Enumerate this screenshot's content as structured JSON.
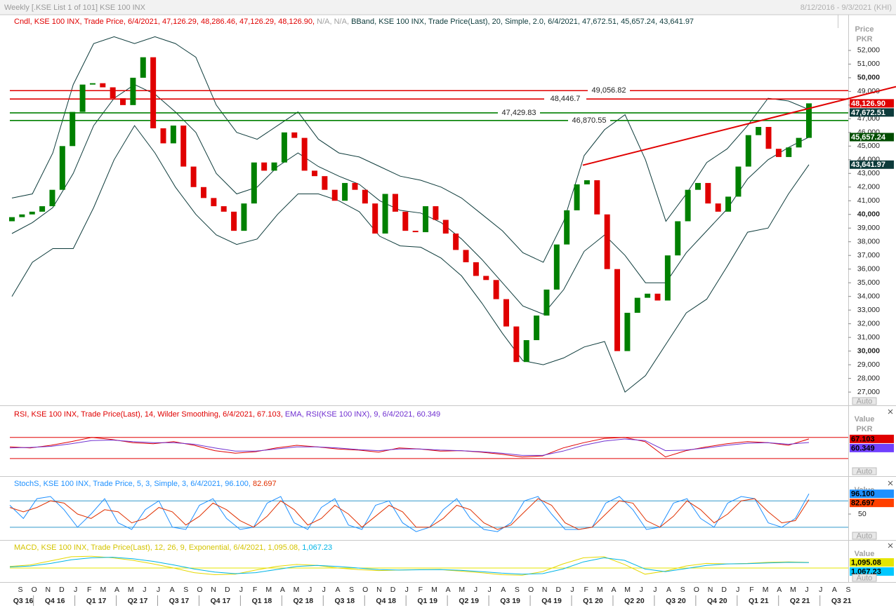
{
  "header": {
    "title": "Weekly [.KSE List 1 of 101] KSE 100 INX",
    "range": "8/12/2016 - 9/3/2021 (KHI)"
  },
  "chart_data": [
    {
      "type": "candlestick",
      "legend": [
        {
          "text": "Cndl, KSE 100 INX, Trade Price, 6/4/2021, 47,126.29, 48,286.46, 47,126.29, 48,126.90, ",
          "color": "#e00000"
        },
        {
          "text": "N/A, N/A, ",
          "color": "#a0a0a0"
        },
        {
          "text": "BBand, KSE 100 INX, Trade Price(Last),  20, Simple, 2.0, 6/4/2021, 47,672.51, 45,657.24, 43,641.97",
          "color": "#0d3b3b"
        }
      ],
      "axis_title": [
        "Price",
        "PKR"
      ],
      "open": 39500,
      "values": [
        39800,
        40000,
        40200,
        40600,
        41800,
        45000,
        47500,
        49500,
        49600,
        49300,
        48500,
        48000,
        50000,
        51500,
        46300,
        45200,
        46500,
        43500,
        42000,
        41200,
        40600,
        40200,
        38800,
        40800,
        43800,
        43200,
        43800,
        46000,
        45600,
        43200,
        42800,
        41800,
        41000,
        42300,
        41800,
        40800,
        38600,
        41500,
        40200,
        38800,
        38700,
        40600,
        39600,
        38600,
        37400,
        36500,
        35500,
        35200,
        33800,
        31800,
        29200,
        30800,
        32600,
        34500,
        37800,
        40300,
        42200,
        42500,
        40000,
        36000,
        30000,
        32800,
        33900,
        34200,
        33700,
        37000,
        39500,
        41800,
        42300,
        40800,
        40200,
        41300,
        43500,
        45800,
        46400,
        44800,
        44200,
        44900,
        45600,
        48126.9
      ],
      "up_color": "#008000",
      "down_color": "#e00000",
      "bands": {
        "color": "#0d3b3b",
        "upper": [
          41200,
          41500,
          44500,
          49500,
          52500,
          53000,
          52500,
          53000,
          52500,
          51500,
          48000,
          46000,
          45500,
          46500,
          47500,
          45500,
          44500,
          44200,
          43500,
          42800,
          42500,
          42000,
          41200,
          40000,
          38800,
          37200,
          36500,
          39500,
          44300,
          46200,
          47300,
          44000,
          39500,
          41500,
          43800,
          44800,
          46500,
          48500,
          48300,
          47672.51
        ],
        "middle": [
          38600,
          39400,
          40500,
          43000,
          46500,
          48500,
          49500,
          48800,
          47500,
          46000,
          43000,
          41500,
          42000,
          43500,
          44500,
          43500,
          42800,
          42200,
          41000,
          40300,
          40100,
          39400,
          38200,
          36700,
          35000,
          33300,
          32700,
          34500,
          37300,
          38500,
          37000,
          35000,
          35000,
          37200,
          38800,
          40400,
          42600,
          44000,
          44900,
          45657.24
        ],
        "lower": [
          34000,
          36500,
          37500,
          37500,
          40500,
          44000,
          46500,
          44500,
          42000,
          40000,
          38500,
          37800,
          38200,
          40000,
          41500,
          41500,
          41000,
          40200,
          38400,
          37700,
          37600,
          36800,
          35500,
          33500,
          31300,
          29300,
          29000,
          29500,
          30300,
          30700,
          27000,
          28200,
          30500,
          32800,
          33800,
          36200,
          38700,
          39000,
          41500,
          43641.97
        ]
      },
      "levels": [
        {
          "value": 49056.82,
          "label": "49,056.82",
          "color": "#e00000"
        },
        {
          "value": 48446.7,
          "label": "48,446.7",
          "color": "#e00000"
        },
        {
          "value": 47429.83,
          "label": "47,429.83",
          "color": "#008000"
        },
        {
          "value": 46870.55,
          "label": "46,870.55",
          "color": "#008000"
        }
      ],
      "trend_line": {
        "values": [
          43600,
          49350
        ],
        "color": "#e00000"
      },
      "badges": [
        {
          "value": 48126.9,
          "label": "48,126.90",
          "color": "#e00000",
          "text_color": "#ffffff"
        },
        {
          "value": 47672.51,
          "label": "47,672.51",
          "color": "#0d3b3b",
          "text_color": "#ffffff"
        },
        {
          "value": 45657.24,
          "label": "45,657.24",
          "color": "#004d00",
          "text_color": "#ffffff"
        },
        {
          "value": 43641.97,
          "label": "43,641.97",
          "color": "#0d3b3b",
          "text_color": "#ffffff"
        }
      ],
      "ylim": [
        26030,
        54560
      ],
      "yticks": [
        {
          "value": 27000,
          "label": "27,000"
        },
        {
          "value": 28000,
          "label": "28,000"
        },
        {
          "value": 29000,
          "label": "29,000"
        },
        {
          "value": 30000,
          "label": "30,000"
        },
        {
          "value": 31000,
          "label": "31,000"
        },
        {
          "value": 32000,
          "label": "32,000"
        },
        {
          "value": 33000,
          "label": "33,000"
        },
        {
          "value": 34000,
          "label": "34,000"
        },
        {
          "value": 35000,
          "label": "35,000"
        },
        {
          "value": 36000,
          "label": "36,000"
        },
        {
          "value": 37000,
          "label": "37,000"
        },
        {
          "value": 38000,
          "label": "38,000"
        },
        {
          "value": 39000,
          "label": "39,000"
        },
        {
          "value": 40000,
          "label": "40,000"
        },
        {
          "value": 41000,
          "label": "41,000"
        },
        {
          "value": 42000,
          "label": "42,000"
        },
        {
          "value": 43000,
          "label": "43,000"
        },
        {
          "value": 44000,
          "label": "44,000"
        },
        {
          "value": 45000,
          "label": "45,000"
        },
        {
          "value": 46000,
          "label": "46,000"
        },
        {
          "value": 47000,
          "label": "47,000"
        },
        {
          "value": 48000,
          "label": "48,000"
        },
        {
          "value": 49000,
          "label": "49,000"
        },
        {
          "value": 50000,
          "label": "50,000"
        },
        {
          "value": 51000,
          "label": "51,000"
        },
        {
          "value": 52000,
          "label": "52,000"
        }
      ],
      "auto_label": "Auto",
      "x_labels": [
        "S",
        "O",
        "N",
        "D",
        "J",
        "F",
        "M",
        "A",
        "M",
        "J",
        "J",
        "A",
        "S",
        "O",
        "N",
        "D",
        "J",
        "F",
        "M",
        "A",
        "M",
        "J",
        "J",
        "A",
        "S",
        "O",
        "N",
        "D",
        "J",
        "F",
        "M",
        "A",
        "M",
        "J",
        "J",
        "A",
        "S",
        "O",
        "N",
        "D",
        "J",
        "F",
        "M",
        "A",
        "M",
        "J",
        "J",
        "A",
        "S",
        "O",
        "N",
        "D",
        "J",
        "F",
        "M",
        "A",
        "M",
        "J",
        "J",
        "A",
        "S"
      ],
      "x_group_labels": [
        "Q3 16",
        "Q4 16",
        "Q1 17",
        "Q2 17",
        "Q3 17",
        "Q4 17",
        "Q1 18",
        "Q2 18",
        "Q3 18",
        "Q4 18",
        "Q1 19",
        "Q2 19",
        "Q3 19",
        "Q4 19",
        "Q1 20",
        "Q2 20",
        "Q3 20",
        "Q4 20",
        "Q1 21",
        "Q2 21",
        "Q3 21"
      ]
    },
    {
      "type": "line",
      "legend": [
        {
          "text": "RSI, KSE 100 INX, Trade Price(Last),  14, Wilder Smoothing, 6/4/2021, 67.103, ",
          "color": "#e00000"
        },
        {
          "text": "EMA, RSI(KSE 100 INX),  9, 6/4/2021, 60.349",
          "color": "#7030d0"
        }
      ],
      "axis_title": [
        "Value",
        "PKR"
      ],
      "series": [
        {
          "color": "#e00000",
          "values": [
            52,
            50,
            55,
            62,
            70,
            66,
            60,
            58,
            62,
            55,
            45,
            40,
            43,
            50,
            55,
            52,
            48,
            46,
            42,
            50,
            48,
            44,
            45,
            42,
            38,
            33,
            35,
            50,
            60,
            68,
            70,
            62,
            33,
            45,
            52,
            58,
            62,
            60,
            55,
            67.103
          ]
        },
        {
          "color": "#7030d0",
          "values": [
            50,
            51,
            53,
            58,
            64,
            65,
            62,
            60,
            60,
            57,
            50,
            44,
            44,
            48,
            52,
            52,
            50,
            47,
            45,
            48,
            48,
            46,
            45,
            43,
            40,
            36,
            36,
            44,
            55,
            63,
            67,
            64,
            45,
            46,
            50,
            55,
            59,
            60,
            57,
            60.349
          ]
        }
      ],
      "hlines": [
        {
          "value": 70,
          "color": "#e00000"
        },
        {
          "value": 30,
          "color": "#e00000"
        }
      ],
      "ylim": [
        -2,
        128
      ],
      "badges": [
        {
          "value": 67.103,
          "label": "67.103",
          "color": "#e00000",
          "text_color": "#000000"
        },
        {
          "value": 60.349,
          "label": "60.349",
          "color": "#7040ff",
          "text_color": "#000000"
        }
      ],
      "auto_label": "Auto"
    },
    {
      "type": "line",
      "legend": [
        {
          "text": "StochS, KSE 100 INX, Trade Price,  5, 3, Simple,  3, 6/4/2021, 96.100, ",
          "color": "#1e90ff"
        },
        {
          "text": "82.697",
          "color": "#e03000"
        }
      ],
      "axis_title": [
        "Value"
      ],
      "series": [
        {
          "color": "#1e90ff",
          "values": [
            70,
            40,
            85,
            90,
            60,
            20,
            50,
            85,
            30,
            15,
            60,
            80,
            20,
            15,
            70,
            85,
            40,
            15,
            20,
            75,
            90,
            30,
            15,
            65,
            85,
            25,
            15,
            70,
            80,
            30,
            10,
            20,
            60,
            85,
            40,
            15,
            10,
            30,
            80,
            90,
            50,
            15,
            15,
            20,
            75,
            90,
            60,
            15,
            20,
            75,
            85,
            40,
            20,
            75,
            90,
            85,
            30,
            20,
            40,
            96.1
          ]
        },
        {
          "color": "#e03000",
          "values": [
            65,
            55,
            65,
            80,
            75,
            50,
            40,
            60,
            55,
            30,
            40,
            65,
            55,
            25,
            45,
            75,
            60,
            35,
            20,
            45,
            80,
            60,
            25,
            40,
            70,
            50,
            20,
            45,
            70,
            55,
            20,
            20,
            40,
            70,
            60,
            30,
            15,
            25,
            55,
            85,
            70,
            30,
            15,
            20,
            50,
            80,
            75,
            35,
            20,
            45,
            80,
            60,
            30,
            50,
            80,
            85,
            55,
            30,
            35,
            82.697
          ]
        }
      ],
      "hlines": [
        {
          "value": 80,
          "color": "#3399cc"
        },
        {
          "value": 20,
          "color": "#3399cc"
        }
      ],
      "ylim": [
        -9,
        133
      ],
      "yticks": [
        50
      ],
      "badges": [
        {
          "value": 96.1,
          "label": "96.100",
          "color": "#1e90ff",
          "text_color": "#000000"
        },
        {
          "value": 82.697,
          "label": "82.697",
          "color": "#ff4000",
          "text_color": "#000000"
        }
      ],
      "auto_label": "Auto"
    },
    {
      "type": "line",
      "legend": [
        {
          "text": "MACD, KSE 100 INX, Trade Price(Last),  12, 26, 9, Exponential, 6/4/2021, 1,095.08, ",
          "color": "#d4c400"
        },
        {
          "text": "1,067.23",
          "color": "#00b4e6"
        }
      ],
      "axis_title": [
        "Value"
      ],
      "series": [
        {
          "color": "#e6d800",
          "values": [
            300,
            600,
            1400,
            2200,
            2300,
            2000,
            1500,
            800,
            0,
            -900,
            -1300,
            -1200,
            -400,
            300,
            700,
            500,
            0,
            -300,
            -500,
            -400,
            -300,
            -300,
            -600,
            -900,
            -1300,
            -1400,
            -700,
            800,
            2000,
            2200,
            700,
            -1200,
            -600,
            400,
            900,
            800,
            900,
            1100,
            1200,
            1095.08
          ]
        },
        {
          "color": "#00b4e6",
          "values": [
            200,
            400,
            900,
            1600,
            2000,
            2100,
            1800,
            1300,
            600,
            -200,
            -800,
            -1100,
            -900,
            -300,
            300,
            500,
            300,
            0,
            -300,
            -400,
            -350,
            -300,
            -450,
            -700,
            -1000,
            -1200,
            -1100,
            -200,
            1200,
            2000,
            1500,
            -200,
            -700,
            -100,
            500,
            800,
            850,
            1000,
            1100,
            1067.23
          ]
        }
      ],
      "hlines": [
        {
          "value": 0,
          "color": "#e6e600"
        }
      ],
      "ylim": [
        -2740,
        5200
      ],
      "badges": [
        {
          "value": 1095.08,
          "label": "1,095.08",
          "color": "#e6e600",
          "text_color": "#000000"
        },
        {
          "value": 1067.23,
          "label": "1,067.23",
          "color": "#00c8ff",
          "text_color": "#000000"
        }
      ],
      "auto_label": "Auto"
    }
  ]
}
